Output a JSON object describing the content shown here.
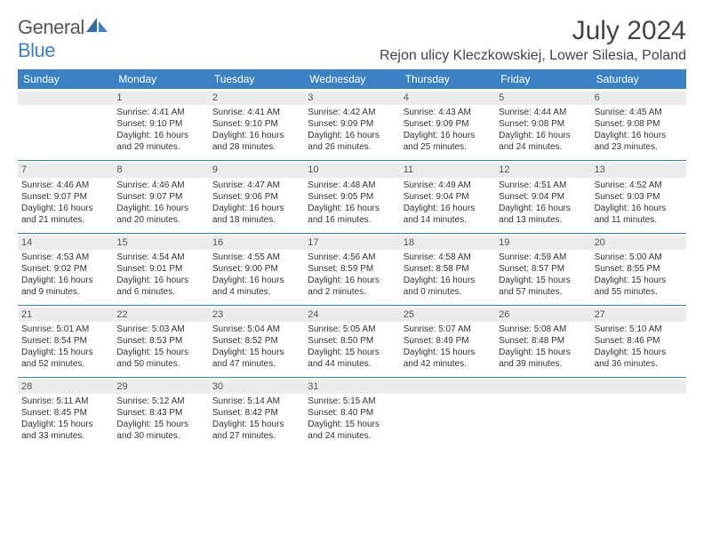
{
  "logo": {
    "general": "General",
    "blue": "Blue"
  },
  "title": "July 2024",
  "location": "Rejon ulicy Kleczkowskiej, Lower Silesia, Poland",
  "colors": {
    "header_bg": "#3b82c4",
    "header_text": "#ffffff",
    "daynum_bg": "#ececec",
    "body_text": "#333333",
    "page_bg": "#ffffff",
    "sep": "#3b82c4"
  },
  "typography": {
    "title_fontsize": 30,
    "location_fontsize": 16,
    "dow_fontsize": 12,
    "cell_fontsize": 10
  },
  "daysOfWeek": [
    "Sunday",
    "Monday",
    "Tuesday",
    "Wednesday",
    "Thursday",
    "Friday",
    "Saturday"
  ],
  "weeks": [
    [
      {
        "day": "",
        "sunrise": "",
        "sunset": "",
        "daylight": ""
      },
      {
        "day": "1",
        "sunrise": "Sunrise: 4:41 AM",
        "sunset": "Sunset: 9:10 PM",
        "daylight": "Daylight: 16 hours and 29 minutes."
      },
      {
        "day": "2",
        "sunrise": "Sunrise: 4:41 AM",
        "sunset": "Sunset: 9:10 PM",
        "daylight": "Daylight: 16 hours and 28 minutes."
      },
      {
        "day": "3",
        "sunrise": "Sunrise: 4:42 AM",
        "sunset": "Sunset: 9:09 PM",
        "daylight": "Daylight: 16 hours and 26 minutes."
      },
      {
        "day": "4",
        "sunrise": "Sunrise: 4:43 AM",
        "sunset": "Sunset: 9:09 PM",
        "daylight": "Daylight: 16 hours and 25 minutes."
      },
      {
        "day": "5",
        "sunrise": "Sunrise: 4:44 AM",
        "sunset": "Sunset: 9:08 PM",
        "daylight": "Daylight: 16 hours and 24 minutes."
      },
      {
        "day": "6",
        "sunrise": "Sunrise: 4:45 AM",
        "sunset": "Sunset: 9:08 PM",
        "daylight": "Daylight: 16 hours and 23 minutes."
      }
    ],
    [
      {
        "day": "7",
        "sunrise": "Sunrise: 4:46 AM",
        "sunset": "Sunset: 9:07 PM",
        "daylight": "Daylight: 16 hours and 21 minutes."
      },
      {
        "day": "8",
        "sunrise": "Sunrise: 4:46 AM",
        "sunset": "Sunset: 9:07 PM",
        "daylight": "Daylight: 16 hours and 20 minutes."
      },
      {
        "day": "9",
        "sunrise": "Sunrise: 4:47 AM",
        "sunset": "Sunset: 9:06 PM",
        "daylight": "Daylight: 16 hours and 18 minutes."
      },
      {
        "day": "10",
        "sunrise": "Sunrise: 4:48 AM",
        "sunset": "Sunset: 9:05 PM",
        "daylight": "Daylight: 16 hours and 16 minutes."
      },
      {
        "day": "11",
        "sunrise": "Sunrise: 4:49 AM",
        "sunset": "Sunset: 9:04 PM",
        "daylight": "Daylight: 16 hours and 14 minutes."
      },
      {
        "day": "12",
        "sunrise": "Sunrise: 4:51 AM",
        "sunset": "Sunset: 9:04 PM",
        "daylight": "Daylight: 16 hours and 13 minutes."
      },
      {
        "day": "13",
        "sunrise": "Sunrise: 4:52 AM",
        "sunset": "Sunset: 9:03 PM",
        "daylight": "Daylight: 16 hours and 11 minutes."
      }
    ],
    [
      {
        "day": "14",
        "sunrise": "Sunrise: 4:53 AM",
        "sunset": "Sunset: 9:02 PM",
        "daylight": "Daylight: 16 hours and 9 minutes."
      },
      {
        "day": "15",
        "sunrise": "Sunrise: 4:54 AM",
        "sunset": "Sunset: 9:01 PM",
        "daylight": "Daylight: 16 hours and 6 minutes."
      },
      {
        "day": "16",
        "sunrise": "Sunrise: 4:55 AM",
        "sunset": "Sunset: 9:00 PM",
        "daylight": "Daylight: 16 hours and 4 minutes."
      },
      {
        "day": "17",
        "sunrise": "Sunrise: 4:56 AM",
        "sunset": "Sunset: 8:59 PM",
        "daylight": "Daylight: 16 hours and 2 minutes."
      },
      {
        "day": "18",
        "sunrise": "Sunrise: 4:58 AM",
        "sunset": "Sunset: 8:58 PM",
        "daylight": "Daylight: 16 hours and 0 minutes."
      },
      {
        "day": "19",
        "sunrise": "Sunrise: 4:59 AM",
        "sunset": "Sunset: 8:57 PM",
        "daylight": "Daylight: 15 hours and 57 minutes."
      },
      {
        "day": "20",
        "sunrise": "Sunrise: 5:00 AM",
        "sunset": "Sunset: 8:55 PM",
        "daylight": "Daylight: 15 hours and 55 minutes."
      }
    ],
    [
      {
        "day": "21",
        "sunrise": "Sunrise: 5:01 AM",
        "sunset": "Sunset: 8:54 PM",
        "daylight": "Daylight: 15 hours and 52 minutes."
      },
      {
        "day": "22",
        "sunrise": "Sunrise: 5:03 AM",
        "sunset": "Sunset: 8:53 PM",
        "daylight": "Daylight: 15 hours and 50 minutes."
      },
      {
        "day": "23",
        "sunrise": "Sunrise: 5:04 AM",
        "sunset": "Sunset: 8:52 PM",
        "daylight": "Daylight: 15 hours and 47 minutes."
      },
      {
        "day": "24",
        "sunrise": "Sunrise: 5:05 AM",
        "sunset": "Sunset: 8:50 PM",
        "daylight": "Daylight: 15 hours and 44 minutes."
      },
      {
        "day": "25",
        "sunrise": "Sunrise: 5:07 AM",
        "sunset": "Sunset: 8:49 PM",
        "daylight": "Daylight: 15 hours and 42 minutes."
      },
      {
        "day": "26",
        "sunrise": "Sunrise: 5:08 AM",
        "sunset": "Sunset: 8:48 PM",
        "daylight": "Daylight: 15 hours and 39 minutes."
      },
      {
        "day": "27",
        "sunrise": "Sunrise: 5:10 AM",
        "sunset": "Sunset: 8:46 PM",
        "daylight": "Daylight: 15 hours and 36 minutes."
      }
    ],
    [
      {
        "day": "28",
        "sunrise": "Sunrise: 5:11 AM",
        "sunset": "Sunset: 8:45 PM",
        "daylight": "Daylight: 15 hours and 33 minutes."
      },
      {
        "day": "29",
        "sunrise": "Sunrise: 5:12 AM",
        "sunset": "Sunset: 8:43 PM",
        "daylight": "Daylight: 15 hours and 30 minutes."
      },
      {
        "day": "30",
        "sunrise": "Sunrise: 5:14 AM",
        "sunset": "Sunset: 8:42 PM",
        "daylight": "Daylight: 15 hours and 27 minutes."
      },
      {
        "day": "31",
        "sunrise": "Sunrise: 5:15 AM",
        "sunset": "Sunset: 8:40 PM",
        "daylight": "Daylight: 15 hours and 24 minutes."
      },
      {
        "day": "",
        "sunrise": "",
        "sunset": "",
        "daylight": ""
      },
      {
        "day": "",
        "sunrise": "",
        "sunset": "",
        "daylight": ""
      },
      {
        "day": "",
        "sunrise": "",
        "sunset": "",
        "daylight": ""
      }
    ]
  ]
}
